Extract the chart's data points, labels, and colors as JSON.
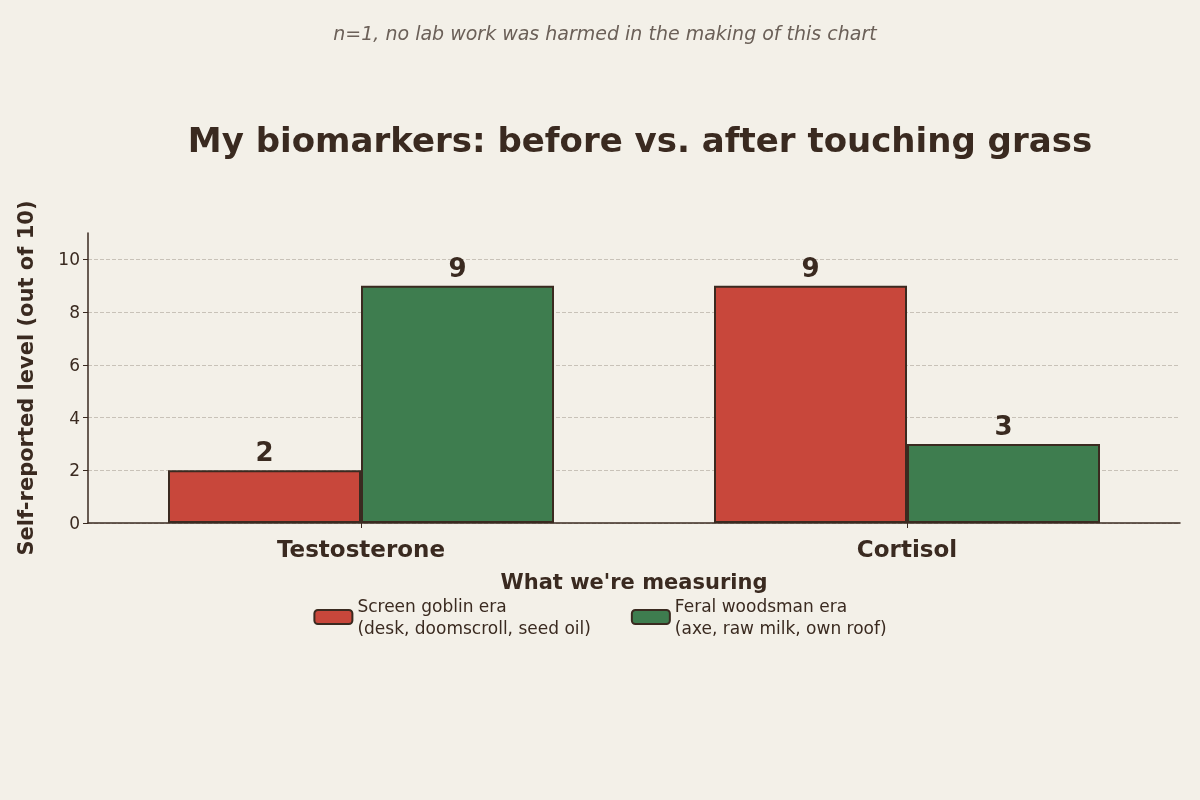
{
  "chart_data": {
    "type": "bar",
    "title": "My biomarkers: before vs. after touching grass",
    "subtitle": "n=1, no lab work was harmed in the making of this chart",
    "xlabel": "What we're measuring",
    "ylabel": "Self-reported level (out of 10)",
    "categories": [
      "Testosterone",
      "Cortisol"
    ],
    "series": [
      {
        "name": "Screen goblin era\n(desk, doomscroll, seed oil)",
        "color": "#c8473b",
        "values": [
          2,
          9
        ]
      },
      {
        "name": "Feral woodsman era\n(axe, raw milk, own roof)",
        "color": "#3e7d4f",
        "values": [
          9,
          3
        ]
      }
    ],
    "ylim": [
      0,
      11
    ],
    "yticks": [
      0,
      2,
      4,
      6,
      8,
      10
    ],
    "grid": "y",
    "legend": "bottom",
    "data_labels": true
  }
}
